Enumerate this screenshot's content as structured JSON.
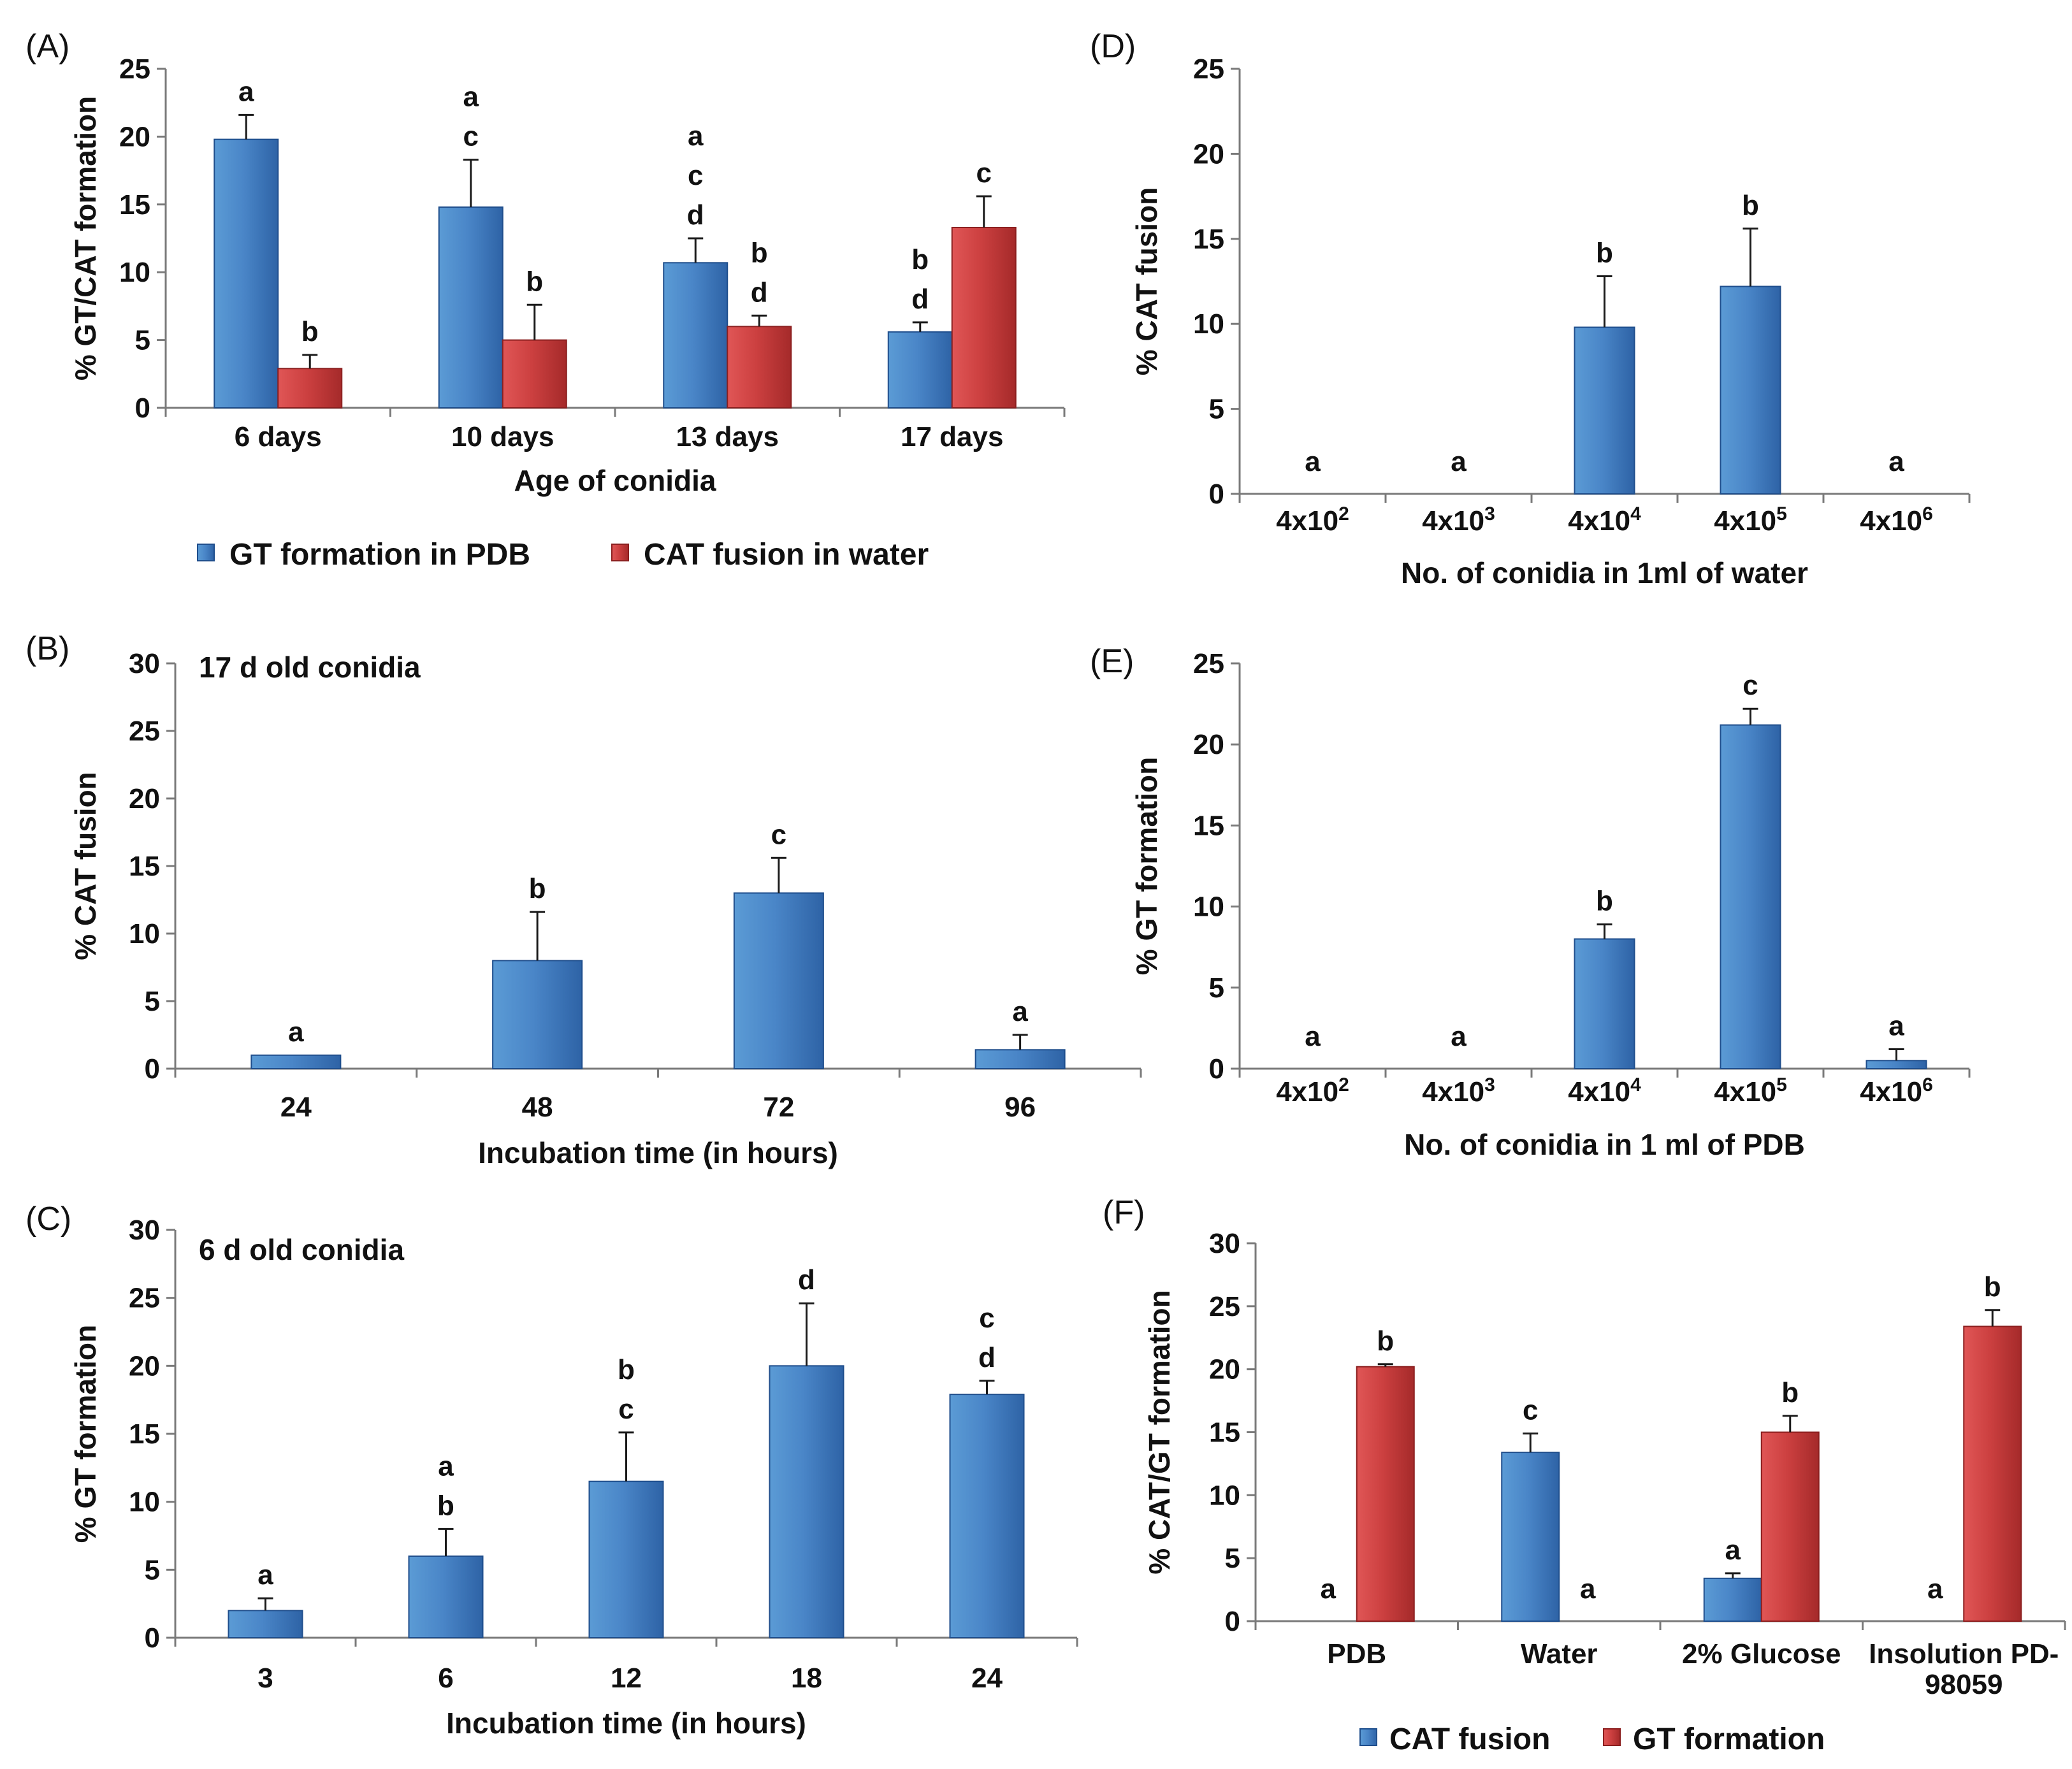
{
  "colors": {
    "blue_light": "#5b9bd5",
    "blue_dark": "#2e63a6",
    "blue_edge": "#1f4e8c",
    "red_light": "#e05656",
    "red_dark": "#a52a2a",
    "red_edge": "#8b1f1f"
  },
  "chart_data": [
    {
      "id": "A",
      "panel_label": "(A)",
      "type": "bar",
      "xlabel": "Age of conidia",
      "ylabel": "% GT/CAT formation",
      "ylim": [
        0,
        25
      ],
      "yticks": [
        0,
        5,
        10,
        15,
        20,
        25
      ],
      "categories": [
        "6 days",
        "10 days",
        "13 days",
        "17 days"
      ],
      "legend": "bottom",
      "series": [
        {
          "name": "GT formation in PDB",
          "color": "blue",
          "values": [
            19.8,
            14.8,
            10.7,
            5.6
          ],
          "errors": [
            1.8,
            3.5,
            1.8,
            0.7
          ],
          "labels": [
            [
              "a"
            ],
            [
              "a",
              "c"
            ],
            [
              "a",
              "c",
              "d"
            ],
            [
              "b",
              "d"
            ]
          ]
        },
        {
          "name": "CAT fusion in water",
          "color": "red",
          "values": [
            2.9,
            5.0,
            6.0,
            13.3
          ],
          "errors": [
            1.0,
            2.6,
            0.8,
            2.3
          ],
          "labels": [
            [
              "b"
            ],
            [
              "b"
            ],
            [
              "b",
              "d"
            ],
            [
              "c"
            ]
          ]
        }
      ]
    },
    {
      "id": "B",
      "panel_label": "(B)",
      "type": "bar",
      "annotation": "17 d old conidia",
      "xlabel": "Incubation time (in hours)",
      "ylabel": "% CAT fusion",
      "ylim": [
        0,
        30
      ],
      "yticks": [
        0,
        5,
        10,
        15,
        20,
        25,
        30
      ],
      "categories": [
        "24",
        "48",
        "72",
        "96"
      ],
      "series": [
        {
          "name": "CAT fusion",
          "color": "blue",
          "values": [
            1.0,
            8.0,
            13.0,
            1.4
          ],
          "errors": [
            0,
            3.6,
            2.6,
            1.1
          ],
          "labels": [
            [
              "a"
            ],
            [
              "b"
            ],
            [
              "c"
            ],
            [
              "a"
            ]
          ]
        }
      ]
    },
    {
      "id": "C",
      "panel_label": "(C)",
      "type": "bar",
      "annotation": "6 d old conidia",
      "xlabel": "Incubation time (in hours)",
      "ylabel": "% GT formation",
      "ylim": [
        0,
        30
      ],
      "yticks": [
        0,
        5,
        10,
        15,
        20,
        25,
        30
      ],
      "categories": [
        "3",
        "6",
        "12",
        "18",
        "24"
      ],
      "series": [
        {
          "name": "GT formation",
          "color": "blue",
          "values": [
            2.0,
            6.0,
            11.5,
            20.0,
            17.9
          ],
          "errors": [
            0.9,
            2.0,
            3.6,
            4.6,
            1.0
          ],
          "labels": [
            [
              "a"
            ],
            [
              "a",
              "b"
            ],
            [
              "b",
              "c"
            ],
            [
              "d"
            ],
            [
              "c",
              "d"
            ]
          ]
        }
      ]
    },
    {
      "id": "D",
      "panel_label": "(D)",
      "type": "bar",
      "xlabel": "No. of conidia in 1ml of water",
      "ylabel": "% CAT fusion",
      "ylim": [
        0,
        25
      ],
      "yticks": [
        0,
        5,
        10,
        15,
        20,
        25
      ],
      "categories": [
        "4x10^2",
        "4x10^3",
        "4x10^4",
        "4x10^5",
        "4x10^6"
      ],
      "tick_base": "4x10",
      "tick_exponents": [
        "2",
        "3",
        "4",
        "5",
        "6"
      ],
      "series": [
        {
          "name": "CAT fusion",
          "color": "blue",
          "values": [
            0,
            0,
            9.8,
            12.2,
            0
          ],
          "errors": [
            0,
            0,
            3.0,
            3.4,
            0
          ],
          "labels": [
            [
              "a"
            ],
            [
              "a"
            ],
            [
              "b"
            ],
            [
              "b"
            ],
            [
              "a"
            ]
          ]
        }
      ]
    },
    {
      "id": "E",
      "panel_label": "(E)",
      "type": "bar",
      "xlabel": "No. of conidia in 1 ml of PDB",
      "ylabel": "% GT formation",
      "ylim": [
        0,
        25
      ],
      "yticks": [
        0,
        5,
        10,
        15,
        20,
        25
      ],
      "categories": [
        "4x10^2",
        "4x10^3",
        "4x10^4",
        "4x10^5",
        "4x10^6"
      ],
      "tick_base": "4x10",
      "tick_exponents": [
        "2",
        "3",
        "4",
        "5",
        "6"
      ],
      "series": [
        {
          "name": "GT formation",
          "color": "blue",
          "values": [
            0,
            0,
            8.0,
            21.2,
            0.5
          ],
          "errors": [
            0,
            0,
            0.9,
            1.0,
            0.7
          ],
          "labels": [
            [
              "a"
            ],
            [
              "a"
            ],
            [
              "b"
            ],
            [
              "c"
            ],
            [
              "a"
            ]
          ]
        }
      ]
    },
    {
      "id": "F",
      "panel_label": "(F)",
      "type": "bar",
      "xlabel": "",
      "ylabel": "% CAT/GT formation",
      "ylim": [
        0,
        30
      ],
      "yticks": [
        0,
        5,
        10,
        15,
        20,
        25,
        30
      ],
      "categories": [
        "PDB",
        "Water",
        "2% Glucose",
        "Insolution PD-98059"
      ],
      "category_lines": [
        [
          "PDB"
        ],
        [
          "Water"
        ],
        [
          "2% Glucose"
        ],
        [
          "Insolution PD-",
          "98059"
        ]
      ],
      "legend": "bottom",
      "series": [
        {
          "name": "CAT fusion",
          "color": "blue",
          "values": [
            0,
            13.4,
            3.4,
            0
          ],
          "errors": [
            0,
            1.5,
            0.4,
            0
          ],
          "labels": [
            [
              "a"
            ],
            [
              "c"
            ],
            [
              "a"
            ],
            [
              "a"
            ]
          ]
        },
        {
          "name": "GT formation",
          "color": "red",
          "values": [
            20.2,
            0,
            15.0,
            23.4
          ],
          "errors": [
            0.2,
            0,
            1.3,
            1.3
          ],
          "labels": [
            [
              "b"
            ],
            [
              "a"
            ],
            [
              "b"
            ],
            [
              "b"
            ]
          ]
        }
      ]
    }
  ]
}
